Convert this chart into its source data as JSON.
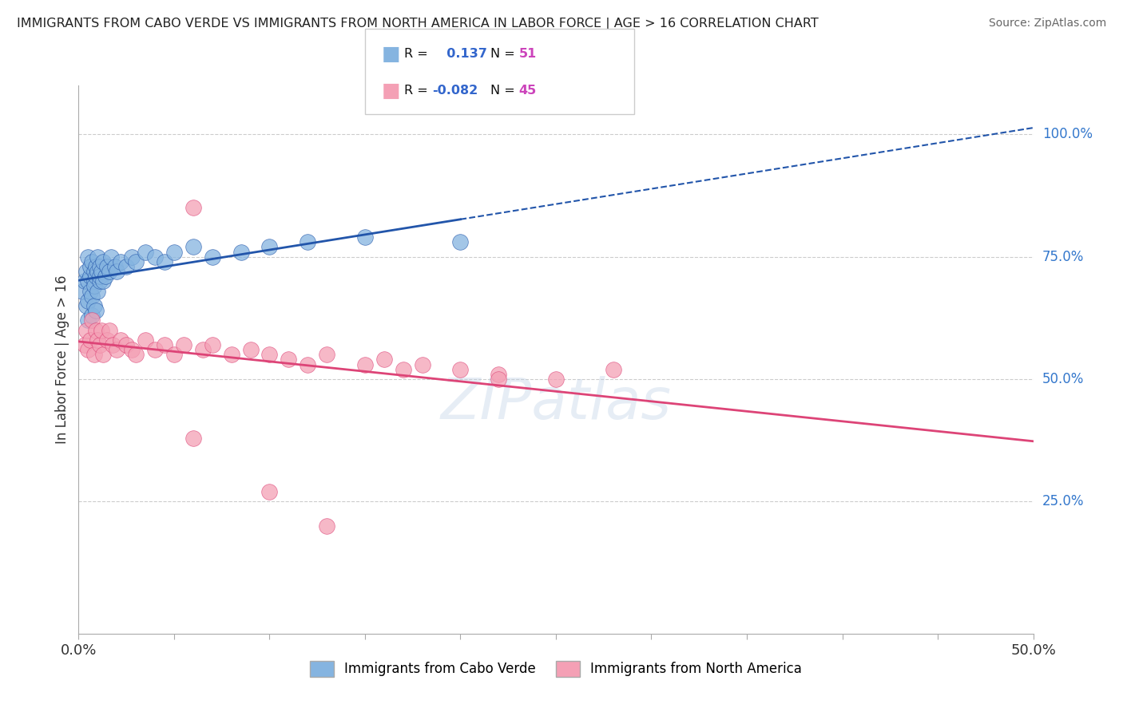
{
  "title": "IMMIGRANTS FROM CABO VERDE VS IMMIGRANTS FROM NORTH AMERICA IN LABOR FORCE | AGE > 16 CORRELATION CHART",
  "source": "Source: ZipAtlas.com",
  "ylabel": "In Labor Force | Age > 16",
  "y_tick_labels": [
    "25.0%",
    "50.0%",
    "75.0%",
    "100.0%"
  ],
  "y_tick_values": [
    0.25,
    0.5,
    0.75,
    1.0
  ],
  "legend_label1": "Immigrants from Cabo Verde",
  "legend_label2": "Immigrants from North America",
  "R1": 0.137,
  "N1": 51,
  "R2": -0.082,
  "N2": 45,
  "color1": "#85b4e0",
  "color2": "#f4a0b5",
  "trendline1_color": "#2255aa",
  "trendline2_color": "#dd4477",
  "background_color": "#ffffff",
  "grid_color": "#cccccc",
  "xlim": [
    0.0,
    0.5
  ],
  "ylim": [
    -0.02,
    1.1
  ],
  "cabo_x": [
    0.002,
    0.003,
    0.004,
    0.004,
    0.005,
    0.005,
    0.005,
    0.005,
    0.006,
    0.006,
    0.006,
    0.007,
    0.007,
    0.007,
    0.008,
    0.008,
    0.008,
    0.008,
    0.009,
    0.009,
    0.009,
    0.01,
    0.01,
    0.01,
    0.011,
    0.011,
    0.011,
    0.012,
    0.013,
    0.013,
    0.014,
    0.015,
    0.016,
    0.017,
    0.019,
    0.02,
    0.022,
    0.025,
    0.028,
    0.03,
    0.035,
    0.04,
    0.045,
    0.05,
    0.06,
    0.07,
    0.085,
    0.1,
    0.12,
    0.15,
    0.2
  ],
  "cabo_y": [
    0.68,
    0.7,
    0.72,
    0.65,
    0.75,
    0.7,
    0.66,
    0.62,
    0.71,
    0.68,
    0.73,
    0.67,
    0.74,
    0.63,
    0.72,
    0.65,
    0.7,
    0.69,
    0.73,
    0.71,
    0.64,
    0.75,
    0.68,
    0.72,
    0.7,
    0.73,
    0.71,
    0.72,
    0.7,
    0.74,
    0.71,
    0.73,
    0.72,
    0.75,
    0.73,
    0.72,
    0.74,
    0.73,
    0.75,
    0.74,
    0.76,
    0.75,
    0.74,
    0.76,
    0.77,
    0.75,
    0.76,
    0.77,
    0.78,
    0.79,
    0.78
  ],
  "north_x": [
    0.003,
    0.004,
    0.005,
    0.006,
    0.007,
    0.008,
    0.009,
    0.01,
    0.011,
    0.012,
    0.013,
    0.015,
    0.016,
    0.018,
    0.02,
    0.022,
    0.025,
    0.028,
    0.03,
    0.035,
    0.04,
    0.045,
    0.05,
    0.055,
    0.06,
    0.065,
    0.07,
    0.08,
    0.09,
    0.1,
    0.11,
    0.12,
    0.13,
    0.15,
    0.16,
    0.17,
    0.18,
    0.2,
    0.22,
    0.25,
    0.06,
    0.1,
    0.13,
    0.22,
    0.28
  ],
  "north_y": [
    0.57,
    0.6,
    0.56,
    0.58,
    0.62,
    0.55,
    0.6,
    0.58,
    0.57,
    0.6,
    0.55,
    0.58,
    0.6,
    0.57,
    0.56,
    0.58,
    0.57,
    0.56,
    0.55,
    0.58,
    0.56,
    0.57,
    0.55,
    0.57,
    0.85,
    0.56,
    0.57,
    0.55,
    0.56,
    0.55,
    0.54,
    0.53,
    0.55,
    0.53,
    0.54,
    0.52,
    0.53,
    0.52,
    0.51,
    0.5,
    0.38,
    0.27,
    0.2,
    0.5,
    0.52
  ],
  "watermark": "ZIPatlas",
  "watermark_color": "#b8cce4",
  "watermark_alpha": 0.35
}
